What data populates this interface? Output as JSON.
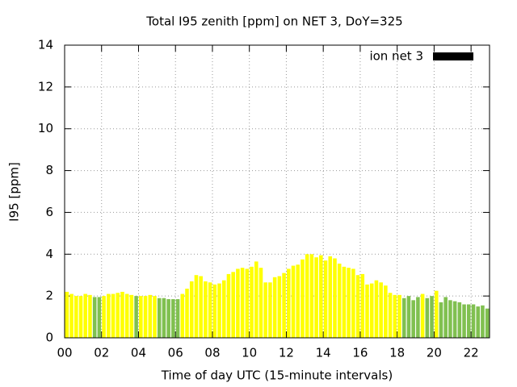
{
  "chart_data": {
    "type": "bar",
    "title": "Total I95 zenith [ppm] on NET 3, DoY=325",
    "x_label": "Time of day UTC (15-minute intervals)",
    "y_label": "I95 [ppm]",
    "x": [
      0,
      0.25,
      0.5,
      0.75,
      1,
      1.25,
      1.5,
      1.75,
      2,
      2.25,
      2.5,
      2.75,
      3,
      3.25,
      3.5,
      3.75,
      4,
      4.25,
      4.5,
      4.75,
      5,
      5.25,
      5.5,
      5.75,
      6,
      6.25,
      6.5,
      6.75,
      7,
      7.25,
      7.5,
      7.75,
      8,
      8.25,
      8.5,
      8.75,
      9,
      9.25,
      9.5,
      9.75,
      10,
      10.25,
      10.5,
      10.75,
      11,
      11.25,
      11.5,
      11.75,
      12,
      12.25,
      12.5,
      12.75,
      13,
      13.25,
      13.5,
      13.75,
      14,
      14.25,
      14.5,
      14.75,
      15,
      15.25,
      15.5,
      15.75,
      16,
      16.25,
      16.5,
      16.75,
      17,
      17.25,
      17.5,
      17.75,
      18,
      18.25,
      18.5,
      18.75,
      19,
      19.25,
      19.5,
      19.75,
      20,
      20.25,
      20.5,
      20.75,
      21,
      21.25,
      21.5,
      21.75,
      22,
      22.25,
      22.5,
      22.75
    ],
    "values": [
      2.2,
      2.1,
      2.0,
      2.0,
      2.1,
      2.05,
      1.95,
      1.95,
      2.0,
      2.1,
      2.1,
      2.15,
      2.2,
      2.1,
      2.05,
      2.0,
      2.0,
      2.0,
      2.05,
      2.0,
      1.9,
      1.9,
      1.85,
      1.85,
      1.85,
      2.1,
      2.35,
      2.7,
      3.0,
      2.95,
      2.7,
      2.65,
      2.55,
      2.6,
      2.75,
      3.05,
      3.15,
      3.3,
      3.35,
      3.3,
      3.4,
      3.65,
      3.35,
      2.65,
      2.65,
      2.9,
      2.95,
      3.1,
      3.3,
      3.45,
      3.5,
      3.75,
      4.0,
      4.0,
      3.85,
      3.95,
      3.7,
      3.9,
      3.8,
      3.55,
      3.4,
      3.35,
      3.3,
      3.0,
      3.05,
      2.55,
      2.6,
      2.75,
      2.65,
      2.5,
      2.15,
      2.05,
      2.05,
      1.9,
      2.0,
      1.8,
      1.95,
      2.1,
      1.9,
      2.0,
      2.25,
      1.7,
      1.95,
      1.8,
      1.75,
      1.7,
      1.6,
      1.6,
      1.6,
      1.5,
      1.55,
      1.4
    ],
    "colors": [
      "#ffff00",
      "#ffff00",
      "#ffff00",
      "#ffff00",
      "#ffff00",
      "#ffff00",
      "#80c050",
      "#80c050",
      "#ffff00",
      "#ffff00",
      "#ffff00",
      "#ffff00",
      "#ffff00",
      "#ffff00",
      "#ffff00",
      "#80c050",
      "#ffff00",
      "#ffff00",
      "#ffff00",
      "#ffff00",
      "#80c050",
      "#80c050",
      "#80c050",
      "#80c050",
      "#80c050",
      "#ffff00",
      "#ffff00",
      "#ffff00",
      "#ffff00",
      "#ffff00",
      "#ffff00",
      "#ffff00",
      "#ffff00",
      "#ffff00",
      "#ffff00",
      "#ffff00",
      "#ffff00",
      "#ffff00",
      "#ffff00",
      "#ffff00",
      "#ffff00",
      "#ffff00",
      "#ffff00",
      "#ffff00",
      "#ffff00",
      "#ffff00",
      "#ffff00",
      "#ffff00",
      "#ffff00",
      "#ffff00",
      "#ffff00",
      "#ffff00",
      "#ffff00",
      "#ffff00",
      "#ffff00",
      "#ffff00",
      "#ffff00",
      "#ffff00",
      "#ffff00",
      "#ffff00",
      "#ffff00",
      "#ffff00",
      "#ffff00",
      "#ffff00",
      "#ffff00",
      "#ffff00",
      "#ffff00",
      "#ffff00",
      "#ffff00",
      "#ffff00",
      "#ffff00",
      "#ffff00",
      "#ffff00",
      "#80c050",
      "#80c050",
      "#80c050",
      "#80c050",
      "#ffff00",
      "#80c050",
      "#80c050",
      "#ffff00",
      "#80c050",
      "#80c050",
      "#80c050",
      "#80c050",
      "#80c050",
      "#80c050",
      "#80c050",
      "#80c050",
      "#80c050",
      "#80c050",
      "#80c050"
    ],
    "bar_width": 0.25,
    "xlim": [
      0,
      23
    ],
    "ylim": [
      0,
      14
    ],
    "xticks": [
      {
        "value": 0,
        "label": "00"
      },
      {
        "value": 2,
        "label": "02"
      },
      {
        "value": 4,
        "label": "04"
      },
      {
        "value": 6,
        "label": "06"
      },
      {
        "value": 8,
        "label": "08"
      },
      {
        "value": 10,
        "label": "10"
      },
      {
        "value": 12,
        "label": "12"
      },
      {
        "value": 14,
        "label": "14"
      },
      {
        "value": 16,
        "label": "16"
      },
      {
        "value": 18,
        "label": "18"
      },
      {
        "value": 20,
        "label": "20"
      },
      {
        "value": 22,
        "label": "22"
      }
    ],
    "yticks": [
      0,
      2,
      4,
      6,
      8,
      10,
      12,
      14
    ],
    "grid": true,
    "legend": {
      "label": "ion net 3",
      "color": "#000000",
      "position": "top-right"
    }
  }
}
